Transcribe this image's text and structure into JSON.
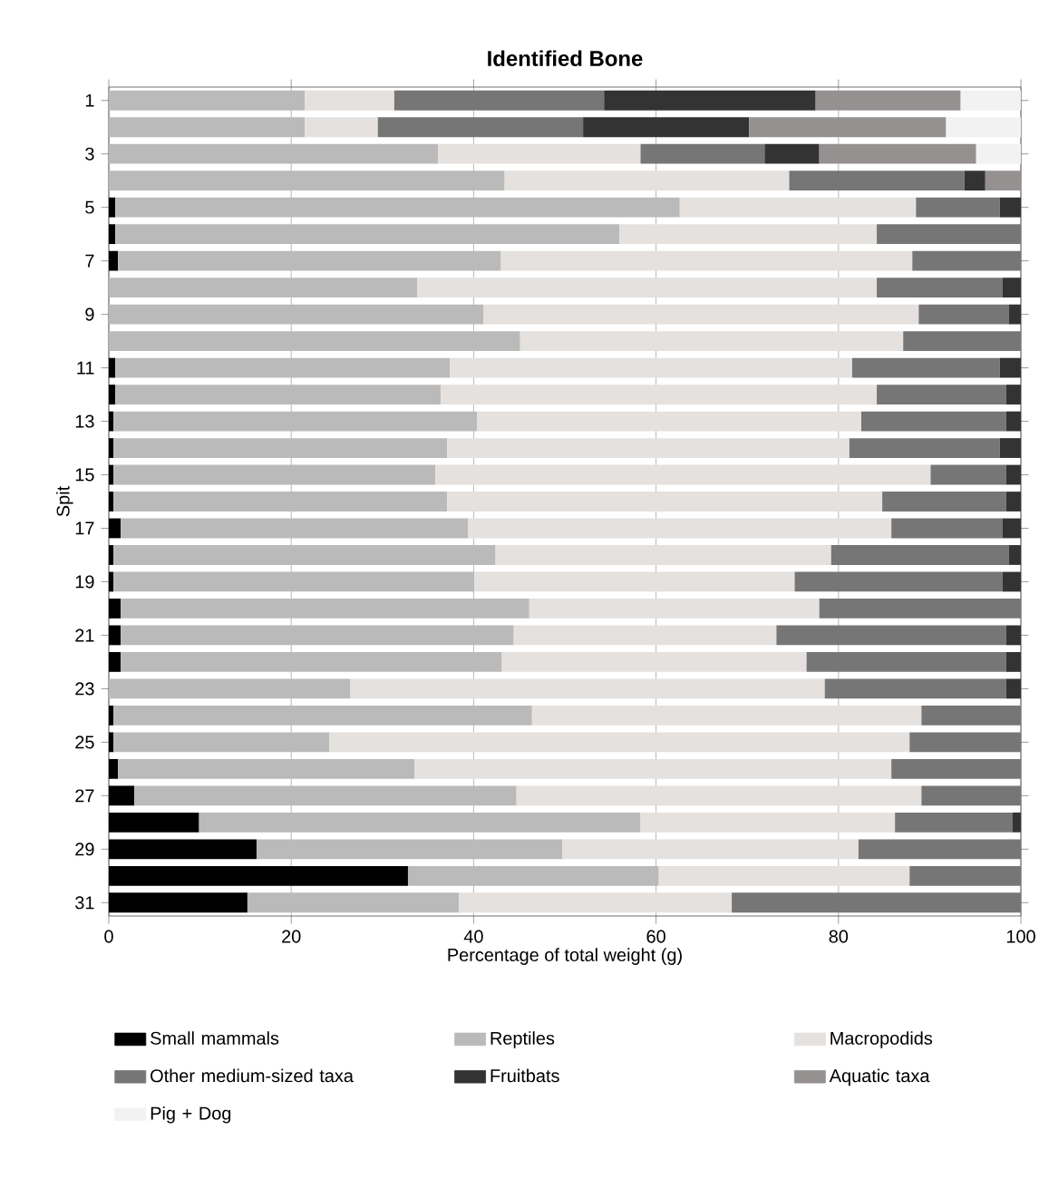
{
  "chart_data": {
    "type": "bar",
    "orientation": "horizontal",
    "stacked": true,
    "title": "Identified Bone",
    "xlabel": "Percentage of total weight (g)",
    "ylabel": "Spit",
    "categories": [
      "1",
      null,
      "3",
      null,
      "5",
      null,
      "7",
      null,
      "9",
      null,
      "11",
      null,
      "13",
      null,
      "15",
      null,
      "17",
      null,
      "19",
      null,
      "21",
      null,
      "23",
      null,
      "25",
      null,
      "27",
      null,
      "29",
      null,
      "31"
    ],
    "xlim": [
      0,
      100
    ],
    "xticks": [
      0,
      20,
      40,
      60,
      80,
      100
    ],
    "grid": "x",
    "legend": "bottom",
    "series": [
      {
        "name": "Small mammals",
        "color": "#000000",
        "values": [
          null,
          null,
          null,
          null,
          0.7,
          0.7,
          1,
          null,
          null,
          null,
          0.7,
          0.7,
          0.5,
          0.5,
          0.5,
          0.5,
          1.3,
          0.5,
          0.5,
          1.3,
          1.3,
          1.3,
          null,
          0.5,
          0.5,
          1,
          2.8,
          9.9,
          16.2,
          32.8,
          15.2
        ]
      },
      {
        "name": "Reptiles",
        "color": "#bababa",
        "values": [
          21.5,
          21.5,
          36.1,
          43.4,
          61.9,
          55.3,
          42,
          33.8,
          41.1,
          45.1,
          36.7,
          35.7,
          39.9,
          36.6,
          35.3,
          36.6,
          38.1,
          41.9,
          39.6,
          44.8,
          43.1,
          41.8,
          26.5,
          45.9,
          23.7,
          32.5,
          41.9,
          48.4,
          33.5,
          27.5,
          23.2
        ]
      },
      {
        "name": "Macropodids",
        "color": "#e4e1de",
        "values": [
          9.8,
          8,
          22.2,
          31.2,
          25.9,
          28.2,
          45.1,
          50.4,
          47.7,
          42,
          44.1,
          47.8,
          42.1,
          44.1,
          54.3,
          47.7,
          46.4,
          36.8,
          35.1,
          31.8,
          28.8,
          33.4,
          52,
          42.7,
          63.6,
          52.3,
          44.4,
          27.9,
          32.5,
          27.5,
          29.9
        ]
      },
      {
        "name": "Other medium-sized taxa",
        "color": "#767676",
        "values": [
          23,
          22.5,
          13.6,
          19.2,
          9.2,
          15.8,
          11.9,
          13.8,
          9.9,
          12.9,
          16.2,
          14.2,
          15.9,
          16.5,
          8.3,
          13.6,
          12.2,
          19.5,
          22.8,
          22.1,
          25.2,
          21.9,
          19.9,
          10.9,
          12.2,
          14.2,
          10.9,
          12.9,
          17.8,
          12.2,
          31.7
        ]
      },
      {
        "name": "Fruitbats",
        "color": "#333333",
        "values": [
          23.2,
          18.2,
          6,
          2.3,
          2.3,
          null,
          null,
          2,
          1.3,
          null,
          2.3,
          1.6,
          1.6,
          2.3,
          1.6,
          1.6,
          2,
          1.3,
          2,
          null,
          1.6,
          1.6,
          1.6,
          null,
          null,
          null,
          null,
          0.9,
          null,
          null,
          null
        ]
      },
      {
        "name": "Aquatic taxa",
        "color": "#959190",
        "values": [
          15.9,
          21.6,
          17.2,
          3.9,
          null,
          null,
          null,
          null,
          null,
          null,
          null,
          null,
          null,
          null,
          null,
          null,
          null,
          null,
          null,
          null,
          null,
          null,
          null,
          null,
          null,
          null,
          null,
          null,
          null,
          null,
          null
        ]
      },
      {
        "name": "Pig + Dog",
        "color": "#f2f2f2",
        "values": [
          6.6,
          8.2,
          4.9,
          null,
          null,
          null,
          null,
          null,
          null,
          null,
          null,
          null,
          null,
          null,
          null,
          null,
          null,
          null,
          null,
          null,
          null,
          null,
          null,
          null,
          null,
          null,
          null,
          null,
          null,
          null,
          null
        ]
      }
    ]
  }
}
